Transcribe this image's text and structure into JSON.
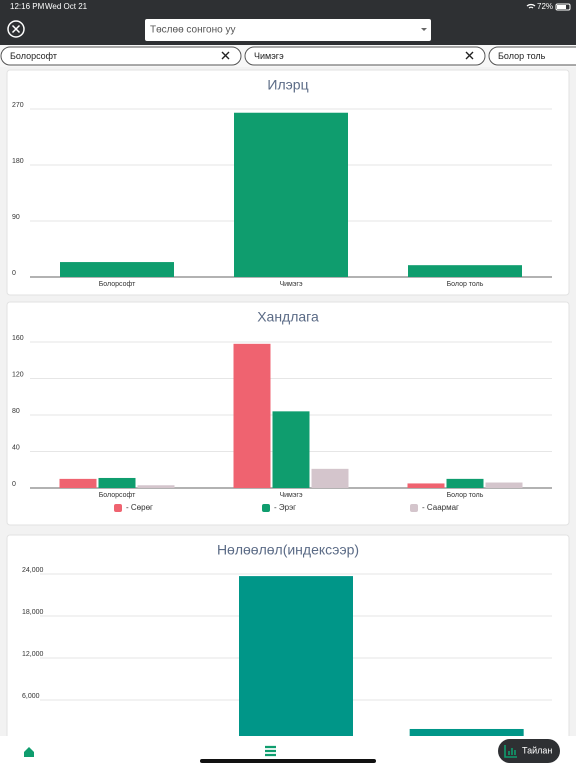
{
  "status_bar": {
    "time": "12:16 PM",
    "date": "Wed Oct 21",
    "battery": "72%"
  },
  "project_select": {
    "placeholder": "Төслөө сонгоно уу"
  },
  "filters": [
    "Болорсофт",
    "Чимэгэ",
    "Болор толь"
  ],
  "chart_data": [
    {
      "type": "bar",
      "title": "Илэрц",
      "categories": [
        "Болорсофт",
        "Чимэгэ",
        "Болор толь"
      ],
      "values": [
        24,
        264,
        19
      ],
      "color": "#0f9d6e",
      "ylim": [
        0,
        270
      ],
      "yticks": [
        0,
        90,
        180,
        270
      ],
      "grid": true
    },
    {
      "type": "grouped-bar",
      "title": "Хандлага",
      "categories": [
        "Болорсофт",
        "Чимэгэ",
        "Болор толь"
      ],
      "series": [
        {
          "name": "- Сөрөг",
          "color": "#ef6370",
          "values": [
            10,
            158,
            5
          ]
        },
        {
          "name": "- Эрэг",
          "color": "#0f9d6e",
          "values": [
            11,
            84,
            10
          ]
        },
        {
          "name": "- Саармаг",
          "color": "#d4c5cc",
          "values": [
            3,
            21,
            6
          ]
        }
      ],
      "ylim": [
        0,
        160
      ],
      "yticks": [
        0,
        40,
        80,
        120,
        160
      ],
      "grid": true,
      "legend": "bottom"
    },
    {
      "type": "bar",
      "title": "Нөлөөлөл(индексээр)",
      "values": [
        null,
        23700,
        1860
      ],
      "color": "#009688",
      "ylim": [
        0,
        24000
      ],
      "yticks": [
        {
          "value": 6000,
          "label": "6,000"
        },
        {
          "value": 12000,
          "label": "12,000"
        },
        {
          "value": 18000,
          "label": "18,000"
        },
        {
          "value": 24000,
          "label": "24,000"
        }
      ],
      "grid": true
    }
  ],
  "nav": {
    "report": "Тайлан"
  }
}
